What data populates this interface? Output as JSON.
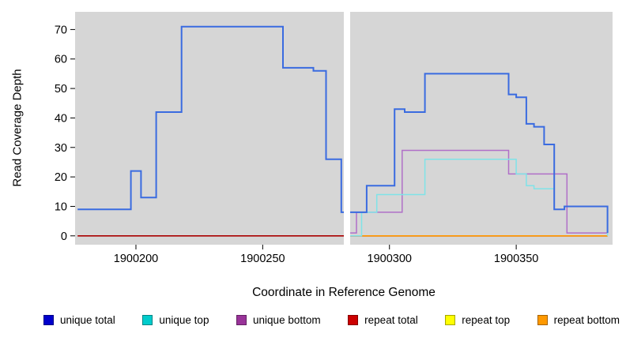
{
  "chart_data": {
    "type": "line",
    "title": "",
    "xlabel": "Coordinate in Reference Genome",
    "ylabel": "Read Coverage Depth",
    "xlim": [
      1900176,
      1900388
    ],
    "ylim": [
      -3,
      76
    ],
    "x_ticks": [
      "1900200",
      "1900250",
      "1900300",
      "1900350"
    ],
    "x_tick_values": [
      1900200,
      1900250,
      1900300,
      1900350
    ],
    "y_ticks": [
      "0",
      "10",
      "20",
      "30",
      "40",
      "50",
      "60",
      "70"
    ],
    "y_tick_values": [
      0,
      10,
      20,
      30,
      40,
      50,
      60,
      70
    ],
    "plot_bg": "#d6d6d6",
    "gap_mask": {
      "x0": 1900282,
      "x1": 1900284.5,
      "color": "#ffffff"
    },
    "grid": false,
    "legend_position": "bottom",
    "series": [
      {
        "name": "repeat total",
        "line_color": "#aa0000",
        "legend_color": "#cc0000",
        "width": 1.6,
        "segments": [
          [
            [
              1900177,
              0
            ],
            [
              1900282,
              0
            ]
          ],
          [
            [
              1900284.5,
              0
            ],
            [
              1900386,
              0
            ]
          ]
        ]
      },
      {
        "name": "repeat top",
        "line_color": "#ffff00",
        "legend_color": "#ffff00",
        "width": 1.4,
        "segments": [
          [
            [
              1900284.5,
              0
            ],
            [
              1900386,
              0
            ]
          ]
        ]
      },
      {
        "name": "repeat bottom",
        "line_color": "#ff9900",
        "legend_color": "#ff9900",
        "width": 1.6,
        "segments": [
          [
            [
              1900284.5,
              0
            ],
            [
              1900386,
              0
            ]
          ]
        ]
      },
      {
        "name": "unique bottom",
        "line_color": "#b06fc8",
        "legend_color": "#993399",
        "width": 1.5,
        "segments": [
          [
            [
              1900284.5,
              1
            ],
            [
              1900287,
              1
            ],
            [
              1900287,
              8
            ],
            [
              1900305,
              8
            ],
            [
              1900305,
              29
            ],
            [
              1900347,
              29
            ],
            [
              1900347,
              21
            ],
            [
              1900370,
              21
            ],
            [
              1900370,
              1
            ],
            [
              1900386,
              1
            ]
          ]
        ]
      },
      {
        "name": "unique top",
        "line_color": "#7fe3e8",
        "legend_color": "#00cccc",
        "width": 1.5,
        "segments": [
          [
            [
              1900284.5,
              0
            ],
            [
              1900289,
              0
            ],
            [
              1900289,
              8
            ],
            [
              1900295,
              8
            ],
            [
              1900295,
              14
            ],
            [
              1900314,
              14
            ],
            [
              1900314,
              26
            ],
            [
              1900350,
              26
            ],
            [
              1900350,
              21
            ],
            [
              1900354,
              21
            ],
            [
              1900354,
              17
            ],
            [
              1900357,
              17
            ],
            [
              1900357,
              16
            ],
            [
              1900365,
              16
            ],
            [
              1900365,
              9
            ],
            [
              1900369,
              9
            ],
            [
              1900369,
              10
            ],
            [
              1900386,
              10
            ],
            [
              1900386,
              0
            ]
          ]
        ]
      },
      {
        "name": "unique total",
        "line_color": "#3a6be0",
        "legend_color": "#0000cc",
        "width": 2,
        "segments": [
          [
            [
              1900177,
              9
            ],
            [
              1900198,
              9
            ],
            [
              1900198,
              22
            ],
            [
              1900202,
              22
            ],
            [
              1900202,
              13
            ],
            [
              1900208,
              13
            ],
            [
              1900208,
              42
            ],
            [
              1900218,
              42
            ],
            [
              1900218,
              71
            ],
            [
              1900258,
              71
            ],
            [
              1900258,
              57
            ],
            [
              1900270,
              57
            ],
            [
              1900270,
              56
            ],
            [
              1900275,
              56
            ],
            [
              1900275,
              26
            ],
            [
              1900281,
              26
            ],
            [
              1900281,
              8
            ],
            [
              1900282,
              8
            ]
          ],
          [
            [
              1900284.5,
              8
            ],
            [
              1900291,
              8
            ],
            [
              1900291,
              17
            ],
            [
              1900302,
              17
            ],
            [
              1900302,
              43
            ],
            [
              1900306,
              43
            ],
            [
              1900306,
              42
            ],
            [
              1900314,
              42
            ],
            [
              1900314,
              55
            ],
            [
              1900347,
              55
            ],
            [
              1900347,
              48
            ],
            [
              1900350,
              48
            ],
            [
              1900350,
              47
            ],
            [
              1900354,
              47
            ],
            [
              1900354,
              38
            ],
            [
              1900357,
              38
            ],
            [
              1900357,
              37
            ],
            [
              1900361,
              37
            ],
            [
              1900361,
              31
            ],
            [
              1900365,
              31
            ],
            [
              1900365,
              9
            ],
            [
              1900369,
              9
            ],
            [
              1900369,
              10
            ],
            [
              1900386,
              10
            ],
            [
              1900386,
              1
            ]
          ]
        ]
      }
    ],
    "legend_order": [
      "unique total",
      "unique top",
      "unique bottom",
      "repeat total",
      "repeat top",
      "repeat bottom"
    ]
  }
}
